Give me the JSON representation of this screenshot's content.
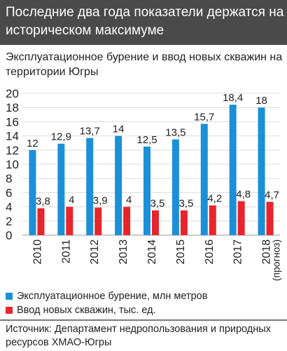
{
  "header": {
    "line1": "Последние два года показатели держатся на",
    "line2": "историческом максимуме"
  },
  "subtitle": {
    "line1": "Эксплуатационное бурение и ввод новых скважин на",
    "line2": "территории Югры"
  },
  "legend": {
    "series1": "Эксплуатационное бурение, млн метров",
    "series2": "Ввод новых скважин, тыс. ед."
  },
  "source": {
    "line1": "Источник: Департамент недропользования и природных",
    "line2": "ресурсов ХМАО-Югры"
  },
  "colors": {
    "header_bg": "#4a4a4a",
    "series1": "#1b8fd8",
    "series2": "#e8252c",
    "grid": "#dcdcdc"
  },
  "chart_data": {
    "type": "bar",
    "title": "",
    "xlabel": "",
    "ylabel": "",
    "ylim": [
      0,
      20
    ],
    "yticks": [
      "0",
      "2",
      "4",
      "6",
      "8",
      "10",
      "12",
      "14",
      "16",
      "18",
      "20"
    ],
    "grid": true,
    "legend_position": "bottom",
    "categories": [
      "2010",
      "2011",
      "2012",
      "2013",
      "2014",
      "2015",
      "2016",
      "2017",
      "2018"
    ],
    "category_notes": [
      "",
      "",
      "",
      "",
      "",
      "",
      "",
      "",
      "(прогноз)"
    ],
    "series": [
      {
        "name": "Эксплуатационное бурение, млн метров",
        "values": [
          12,
          12.9,
          13.7,
          14,
          12.5,
          13.5,
          15.7,
          18.4,
          18
        ],
        "labels": [
          "12",
          "12,9",
          "13,7",
          "14",
          "12,5",
          "13,5",
          "15,7",
          "18,4",
          "18"
        ]
      },
      {
        "name": "Ввод новых скважин, тыс. ед.",
        "values": [
          3.8,
          4,
          3.9,
          4,
          3.5,
          3.5,
          4.2,
          4.8,
          4.7
        ],
        "labels": [
          "3,8",
          "4",
          "3,9",
          "4",
          "3,5",
          "3,5",
          "4,2",
          "4,8",
          "4,7"
        ]
      }
    ]
  }
}
